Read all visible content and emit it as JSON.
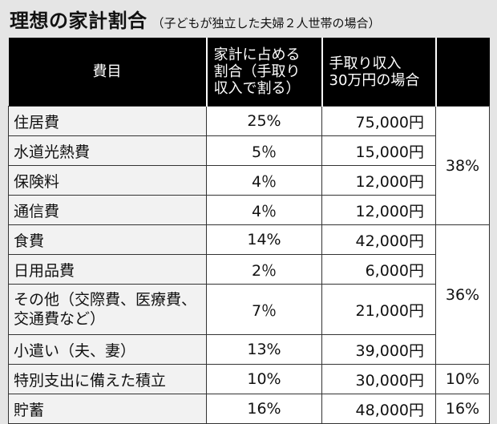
{
  "title": "理想の家計割合",
  "subtitle": "（子どもが独立した夫婦２人世帯の場合）",
  "table": {
    "headers": {
      "item": "費目",
      "ratio_1": "家計に占める",
      "ratio_2": "割合（手取り",
      "ratio_3": "収入で割る）",
      "amount_1": "手取り収入",
      "amount_2": "30万円の場合"
    },
    "rows": [
      {
        "item": "住居費",
        "ratio": "25%",
        "amount": "75,000円"
      },
      {
        "item": "水道光熱費",
        "ratio": "5％",
        "amount": "15,000円"
      },
      {
        "item": "保険料",
        "ratio": "4％",
        "amount": "12,000円"
      },
      {
        "item": "通信費",
        "ratio": "4％",
        "amount": "12,000円"
      },
      {
        "item": "食費",
        "ratio": "14%",
        "amount": "42,000円"
      },
      {
        "item": "日用品費",
        "ratio": "2％",
        "amount": "6,000円"
      },
      {
        "item_1": "その他（交際費、医療費、",
        "item_2": "交通費など）",
        "ratio": "7％",
        "amount": "21,000円"
      },
      {
        "item": "小遣い（夫、妻）",
        "ratio": "13%",
        "amount": "39,000円"
      },
      {
        "item": "特別支出に備えた積立",
        "ratio": "10%",
        "amount": "30,000円"
      },
      {
        "item": "貯蓄",
        "ratio": "16%",
        "amount": "48,000円"
      }
    ],
    "groups": [
      "38%",
      "36%",
      "10%",
      "16%"
    ]
  }
}
